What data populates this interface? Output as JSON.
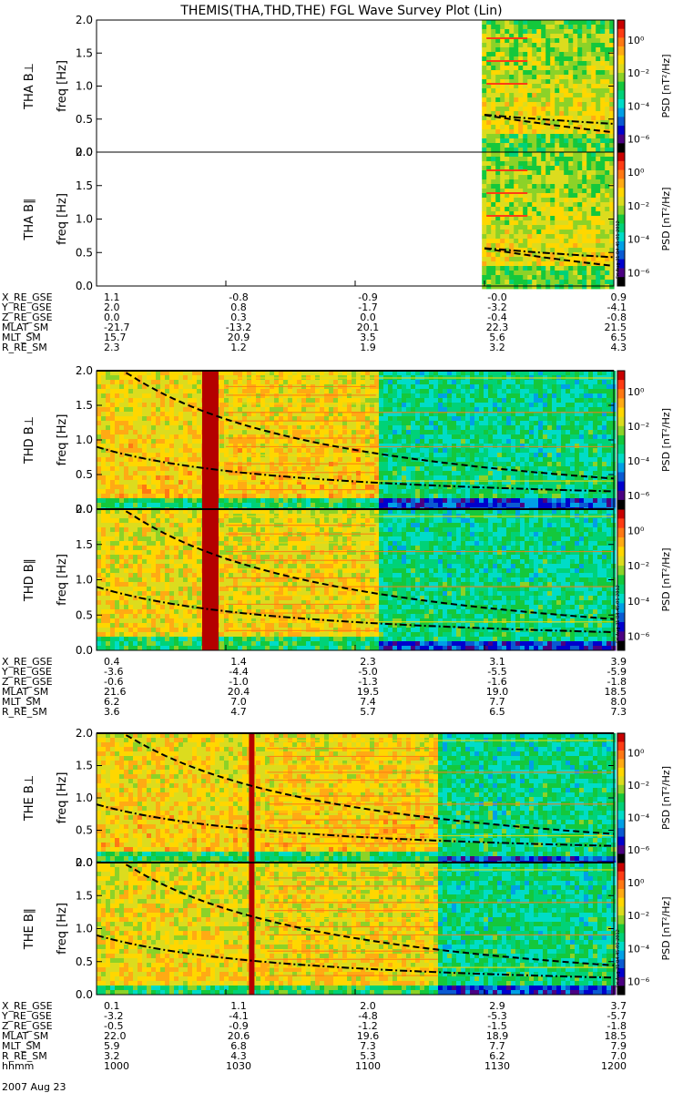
{
  "title": "THEMIS(THA,THD,THE) FGL Wave Survey Plot (Lin)",
  "colors": {
    "palette": [
      "#000000",
      "#4b0082",
      "#0000cd",
      "#0a5ad2",
      "#00a0e6",
      "#00dcc8",
      "#00d278",
      "#14c83c",
      "#8cd228",
      "#dcdc1e",
      "#ffd700",
      "#ffaa14",
      "#ff7814",
      "#ff3c14",
      "#c80000"
    ]
  },
  "colorbar": {
    "label": "PSD [nT²/Hz]",
    "ticks": [
      "10⁰",
      "10⁻²",
      "10⁻⁴",
      "10⁻⁶"
    ]
  },
  "stamp": "Fri Aug 31 04:45:01 2012",
  "chart_data": [
    {
      "type": "heatmap",
      "probe": "THA",
      "panels": [
        {
          "probe_label": "THA",
          "comp": "B⊥",
          "ylabel": "freq [Hz]",
          "data_start_fraction": 0.745
        },
        {
          "probe_label": "THA",
          "comp": "B∥",
          "ylabel": "freq [Hz]",
          "data_start_fraction": 0.745
        }
      ],
      "ylim": [
        0,
        2.0
      ],
      "yticks": [
        "0.0",
        "0.5",
        "1.0",
        "1.5",
        "2.0"
      ],
      "ephemeris": [
        {
          "label": "X_RE_GSE",
          "values": [
            "1.1",
            "-0.8",
            "-0.9",
            "-0.0",
            "0.9"
          ]
        },
        {
          "label": "Y_RE_GSE",
          "values": [
            "2.0",
            "0.8",
            "-1.7",
            "-3.2",
            "-4.1"
          ]
        },
        {
          "label": "Z_RE_GSE",
          "values": [
            "0.0",
            "0.3",
            "0.0",
            "-0.4",
            "-0.8"
          ]
        },
        {
          "label": "MLAT_SM",
          "values": [
            "-21.7",
            "-13.2",
            "20.1",
            "22.3",
            "21.5"
          ]
        },
        {
          "label": "MLT_SM",
          "values": [
            "15.7",
            "20.9",
            "3.5",
            "5.6",
            "6.5"
          ]
        },
        {
          "label": "R_RE_SM",
          "values": [
            "2.3",
            "1.2",
            "1.9",
            "3.2",
            "4.3"
          ]
        }
      ]
    },
    {
      "type": "heatmap",
      "probe": "THD",
      "panels": [
        {
          "probe_label": "THD",
          "comp": "B⊥",
          "ylabel": "freq [Hz]",
          "transition_fraction": 0.54,
          "spike_fraction": 0.22
        },
        {
          "probe_label": "THD",
          "comp": "B∥",
          "ylabel": "freq [Hz]",
          "transition_fraction": 0.54,
          "spike_fraction": 0.22
        }
      ],
      "ylim": [
        0,
        2.0
      ],
      "yticks": [
        "0.0",
        "0.5",
        "1.0",
        "1.5",
        "2.0"
      ],
      "ephemeris": [
        {
          "label": "X_RE_GSE",
          "values": [
            "0.4",
            "1.4",
            "2.3",
            "3.1",
            "3.9"
          ]
        },
        {
          "label": "Y_RE_GSE",
          "values": [
            "-3.6",
            "-4.4",
            "-5.0",
            "-5.5",
            "-5.9"
          ]
        },
        {
          "label": "Z_RE_GSE",
          "values": [
            "-0.6",
            "-1.0",
            "-1.3",
            "-1.6",
            "-1.8"
          ]
        },
        {
          "label": "MLAT_SM",
          "values": [
            "21.6",
            "20.4",
            "19.5",
            "19.0",
            "18.5"
          ]
        },
        {
          "label": "MLT_SM",
          "values": [
            "6.2",
            "7.0",
            "7.4",
            "7.7",
            "8.0"
          ]
        },
        {
          "label": "R_RE_SM",
          "values": [
            "3.6",
            "4.7",
            "5.7",
            "6.5",
            "7.3"
          ]
        }
      ]
    },
    {
      "type": "heatmap",
      "probe": "THE",
      "panels": [
        {
          "probe_label": "THE",
          "comp": "B⊥",
          "ylabel": "freq [Hz]",
          "transition_fraction": 0.66,
          "spike_fraction": 0.3
        },
        {
          "probe_label": "THE",
          "comp": "B∥",
          "ylabel": "freq [Hz]",
          "transition_fraction": 0.66,
          "spike_fraction": 0.3
        }
      ],
      "ylim": [
        0,
        2.0
      ],
      "yticks": [
        "0.0",
        "0.5",
        "1.0",
        "1.5",
        "2.0"
      ],
      "ephemeris": [
        {
          "label": "X_RE_GSE",
          "values": [
            "0.1",
            "1.1",
            "2.0",
            "2.9",
            "3.7"
          ]
        },
        {
          "label": "Y_RE_GSE",
          "values": [
            "-3.2",
            "-4.1",
            "-4.8",
            "-5.3",
            "-5.7"
          ]
        },
        {
          "label": "Z_RE_GSE",
          "values": [
            "-0.5",
            "-0.9",
            "-1.2",
            "-1.5",
            "-1.8"
          ]
        },
        {
          "label": "MLAT_SM",
          "values": [
            "22.0",
            "20.6",
            "19.6",
            "18.9",
            "18.5"
          ]
        },
        {
          "label": "MLT_SM",
          "values": [
            "5.9",
            "6.8",
            "7.3",
            "7.7",
            "7.9"
          ]
        },
        {
          "label": "R_RE_SM",
          "values": [
            "3.2",
            "4.3",
            "5.3",
            "6.2",
            "7.0"
          ]
        },
        {
          "label": "hhmm",
          "values": [
            "1000",
            "1030",
            "1100",
            "1130",
            "1200"
          ]
        }
      ]
    }
  ],
  "date": "2007 Aug 23"
}
